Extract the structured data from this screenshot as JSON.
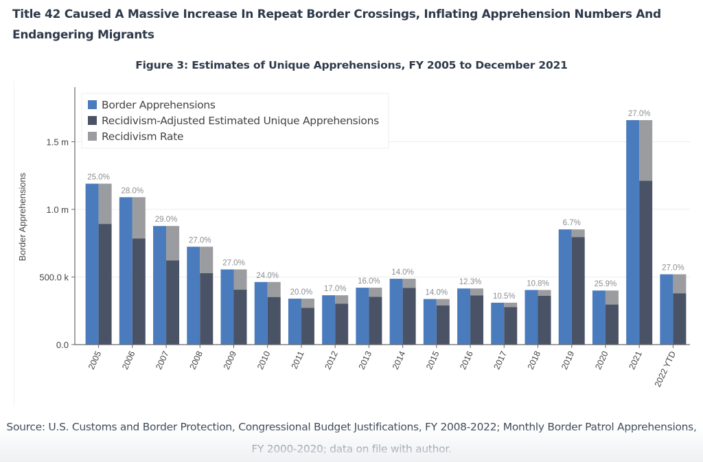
{
  "page": {
    "heading": "Title 42 Caused A Massive Increase In Repeat Border Crossings, Inflating Apprehension Numbers And Endangering Migrants",
    "source": "Source: U.S. Customs and Border Protection, Congressional Budget Justifications, FY 2008-2022; Monthly Border Patrol Apprehensions, FY 2000-2020; data on file with author."
  },
  "chart_data": {
    "type": "bar",
    "title": "Figure 3: Estimates of Unique Apprehensions, FY 2005 to December 2021",
    "xlabel": "",
    "ylabel": "Border Apprehensions",
    "ylim": [
      0,
      1900000
    ],
    "yticks": [
      0,
      500000,
      1000000,
      1500000
    ],
    "ytick_labels": [
      "0.0",
      "500.0 k",
      "1.0 m",
      "1.5 m"
    ],
    "grid": true,
    "legend_position": "top-left",
    "categories": [
      "2005",
      "2006",
      "2007",
      "2008",
      "2009",
      "2010",
      "2011",
      "2012",
      "2013",
      "2014",
      "2015",
      "2016",
      "2017",
      "2018",
      "2019",
      "2020",
      "2021",
      "2022 YTD"
    ],
    "series": [
      {
        "name": "Border Apprehensions",
        "color": "#4a7bbd",
        "values": [
          1190000,
          1090000,
          877000,
          724000,
          556000,
          463000,
          340000,
          365000,
          421000,
          487000,
          337000,
          415000,
          310000,
          404000,
          852000,
          400000,
          1660000,
          520000
        ]
      },
      {
        "name": "Recidivism-Adjusted Estimated Unique Apprehensions",
        "color": "#4a5366",
        "values": [
          892500,
          784800,
          622700,
          528500,
          405900,
          351900,
          272000,
          303000,
          353600,
          418800,
          289800,
          364000,
          277500,
          360400,
          794900,
          296400,
          1211800,
          379600
        ]
      },
      {
        "name": "Recidivism Rate",
        "color": "#9b9ca0",
        "values": [
          25.0,
          28.0,
          29.0,
          27.0,
          27.0,
          24.0,
          20.0,
          17.0,
          16.0,
          14.0,
          14.0,
          12.3,
          10.5,
          10.8,
          6.7,
          25.9,
          27.0,
          27.0
        ]
      }
    ],
    "data_labels": [
      "25.0%",
      "28.0%",
      "29.0%",
      "27.0%",
      "27.0%",
      "24.0%",
      "20.0%",
      "17.0%",
      "16.0%",
      "14.0%",
      "14.0%",
      "12.3%",
      "10.5%",
      "10.8%",
      "6.7%",
      "25.9%",
      "27.0%",
      "27.0%"
    ]
  }
}
